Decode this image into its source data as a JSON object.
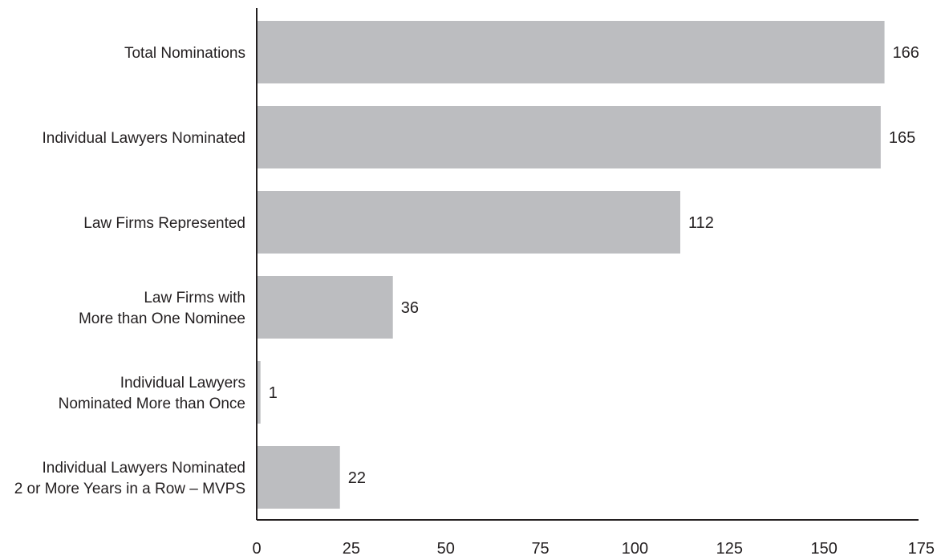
{
  "chart_data": {
    "type": "bar",
    "orientation": "horizontal",
    "title": "",
    "xlabel": "",
    "ylabel": "",
    "xlim": [
      0,
      175
    ],
    "xticks": [
      0,
      25,
      50,
      75,
      100,
      125,
      150,
      175
    ],
    "grid": false,
    "legend": "none",
    "colors": {
      "bar": "#bcbdc0",
      "axis": "#231f20",
      "text": "#231f20"
    },
    "categories": [
      [
        "Total Nominations"
      ],
      [
        "Individual Lawyers Nominated"
      ],
      [
        "Law Firms Represented"
      ],
      [
        "Law Firms with",
        "More than One Nominee"
      ],
      [
        "Individual Lawyers",
        "Nominated More than Once"
      ],
      [
        "Individual Lawyers Nominated",
        "2 or More Years in a Row – MVPS"
      ]
    ],
    "values": [
      166,
      165,
      112,
      36,
      1,
      22
    ],
    "data_labels": [
      "166",
      "165",
      "112",
      "36",
      "1",
      "22"
    ]
  }
}
